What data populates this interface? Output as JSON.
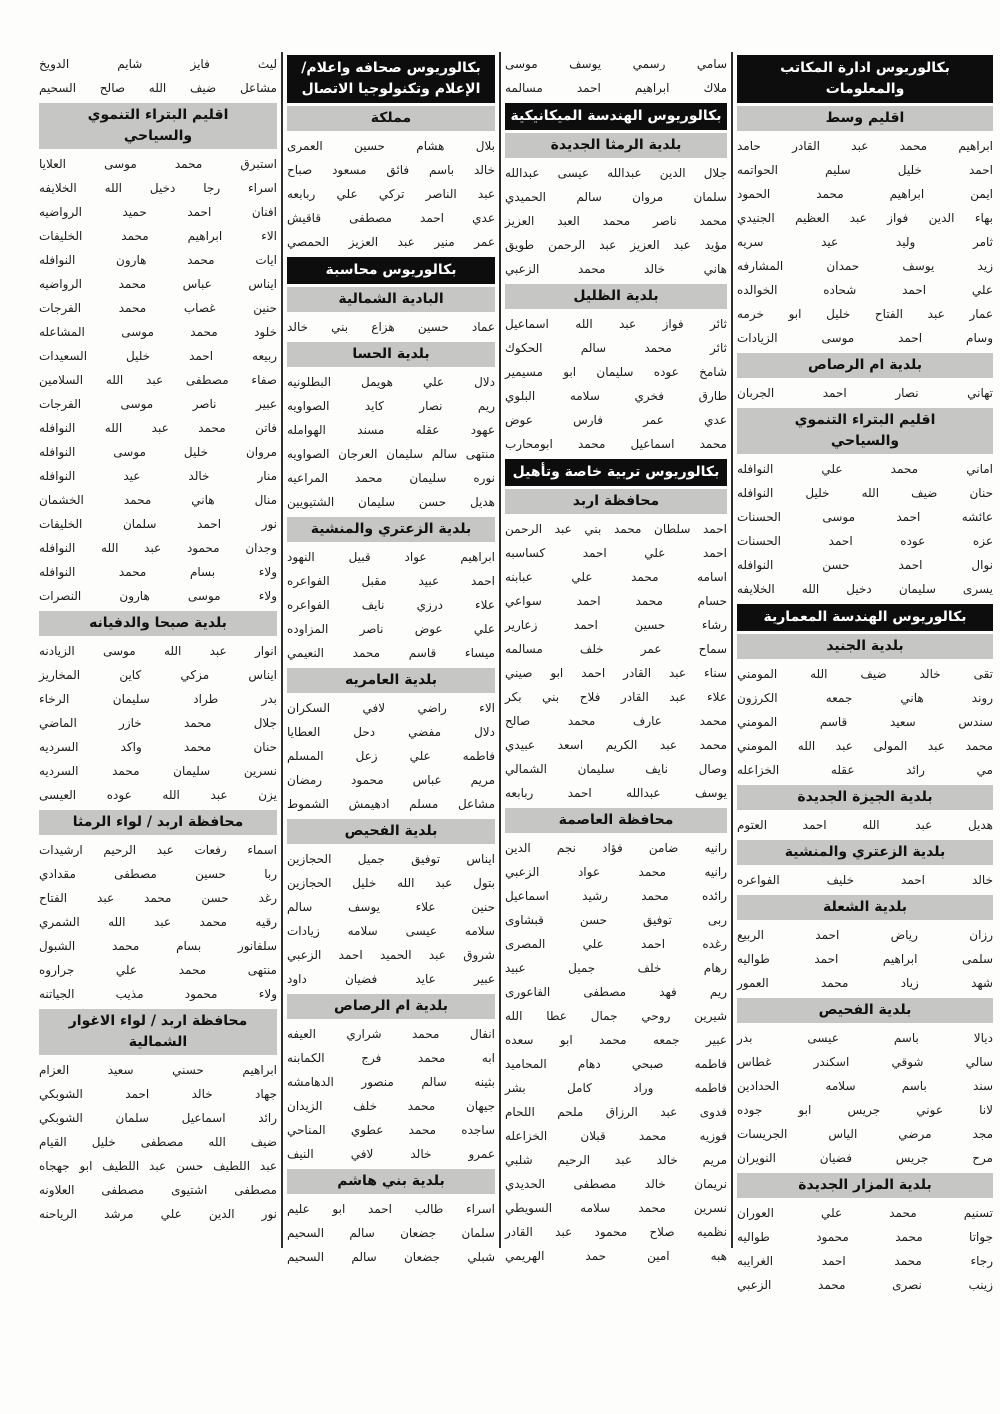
{
  "page": {
    "language": "ar",
    "direction": "rtl",
    "paper_color": "#fdfdfc",
    "text_color": "#1c1c1c",
    "degree_header_bg": "#0d0d0d",
    "degree_header_text": "#ffffff",
    "region_header_bg": "#c6c6c4",
    "divider_color": "#2e2e2e"
  },
  "columns": [
    {
      "blocks": [
        {
          "kind": "degree",
          "lines": [
            "بكالوريوس ادارة المكاتب",
            "والمعلومات"
          ]
        },
        {
          "kind": "region",
          "lines": [
            "اقليم وسط"
          ]
        },
        {
          "kind": "names",
          "items": [
            "ابراهيم محمد عبد القادر حامد",
            "احمد خليل سليم الحواتمه",
            "ايمن ابراهيم محمد الحمود",
            "بهاء الدين فواز عبد العظيم الجنيدي",
            "ثامر وليد عيد سريه",
            "زيد يوسف حمدان المشارفه",
            "علي احمد شحاده الخوالده",
            "عمار عبد الفتاح خليل ابو خرمه",
            "وسام احمد موسى الزيادات"
          ]
        },
        {
          "kind": "region",
          "lines": [
            "بلدية ام الرصاص"
          ]
        },
        {
          "kind": "names",
          "items": [
            "تهاني نصار احمد الجربان"
          ]
        },
        {
          "kind": "region",
          "lines": [
            "اقليم البتراء التنموي",
            "والسياحي"
          ]
        },
        {
          "kind": "names",
          "items": [
            "اماني محمد علي النوافله",
            "حنان ضيف الله خليل النوافله",
            "عائشه احمد موسى الحسنات",
            "عزه عوده احمد الحسنات",
            "نوال احمد حسن النوافله",
            "يسرى سليمان دخيل الله الخلايفه"
          ]
        },
        {
          "kind": "degree",
          "lines": [
            "بكالوريوس الهندسة المعمارية"
          ]
        },
        {
          "kind": "region",
          "lines": [
            "بلدية الجنيد"
          ]
        },
        {
          "kind": "names",
          "items": [
            "تقى خالد ضيف الله المومني",
            "روند هاني جمعه الكرزون",
            "سندس سعيد قاسم المومني",
            "محمد عبد المولى عبد الله المومني",
            "مي رائد عقله الخزاعله"
          ]
        },
        {
          "kind": "region",
          "lines": [
            "بلدية الجيزة الجديدة"
          ]
        },
        {
          "kind": "names",
          "items": [
            "هديل عبد الله احمد العتوم"
          ]
        },
        {
          "kind": "region",
          "lines": [
            "بلدية الزعتري والمنشية"
          ]
        },
        {
          "kind": "names",
          "items": [
            "خالد احمد خليف الفواعره"
          ]
        },
        {
          "kind": "region",
          "lines": [
            "بلدية الشعلة"
          ]
        },
        {
          "kind": "names",
          "items": [
            "رزان رياض احمد الربيع",
            "سلمى ابراهيم احمد طواليه",
            "شهد زياد محمد العمور"
          ]
        },
        {
          "kind": "region",
          "lines": [
            "بلدية الفحيص"
          ]
        },
        {
          "kind": "names",
          "items": [
            "ديالا باسم عيسى بدر",
            "سالي شوقي اسكندر غطاس",
            "سند باسم سلامه الحدادين",
            "لانا عوني جريس ابو جوده",
            "مجد مرضي الياس الجريسات",
            "مرح جريس فضيان النويران"
          ]
        },
        {
          "kind": "region",
          "lines": [
            "بلدية المزار الجديدة"
          ]
        },
        {
          "kind": "names",
          "items": [
            "تسنيم محمد علي العوران",
            "جواتا محمد محمود طواليه",
            "رجاء محمد احمد الغرايبه",
            "زينب نصرى محمد الزعبي"
          ]
        }
      ]
    },
    {
      "blocks": [
        {
          "kind": "names",
          "items": [
            "سامي رسمي يوسف موسى",
            "ملاك ابراهيم احمد مسالمه"
          ]
        },
        {
          "kind": "degree",
          "lines": [
            "بكالوريوس الهندسة الميكانيكية"
          ]
        },
        {
          "kind": "region",
          "lines": [
            "بلدية الرمثا الجديدة"
          ]
        },
        {
          "kind": "names",
          "items": [
            "جلال الدين عبدالله عيسى عبدالله",
            "سلمان مروان سالم الحميدي",
            "محمد ناصر محمد العبد العزيز",
            "مؤيد عبد العزيز عبد الرحمن طويق",
            "هاني خالد محمد الزعبي"
          ]
        },
        {
          "kind": "region",
          "lines": [
            "بلدية الظليل"
          ]
        },
        {
          "kind": "names",
          "items": [
            "ثائر فواز عبد الله اسماعيل",
            "ثائر محمد سالم الحكوك",
            "شامخ عوده سليمان ابو مسيمير",
            "طارق فخري سلامه البلوي",
            "عدي عمر فارس عوض",
            "محمد اسماعيل محمد ابومحارب"
          ]
        },
        {
          "kind": "degree",
          "lines": [
            "بكالوريوس تربية خاصة وتأهيل"
          ]
        },
        {
          "kind": "region",
          "lines": [
            "محافظة اربد"
          ]
        },
        {
          "kind": "names",
          "items": [
            "احمد سلطان محمد بني عبد الرحمن",
            "احمد علي احمد كساسبه",
            "اسامه محمد علي عبابنه",
            "حسام محمد احمد سواعي",
            "رشاء حسين احمد زعارير",
            "سماح عمر خلف مسالمه",
            "سناء عبد القادر احمد ابو صيني",
            "علاء عبد القادر فلاح بني بكر",
            "محمد عارف محمد صالح",
            "محمد عبد الكريم اسعد عبيدي",
            "وصال نايف سليمان الشمالي",
            "يوسف عبدالله احمد ربابعه"
          ]
        },
        {
          "kind": "region",
          "lines": [
            "محافظة العاصمة"
          ]
        },
        {
          "kind": "names",
          "items": [
            "رانيه ضامن فؤاد نجم الدين",
            "رانيه محمد عواد الزعبي",
            "رائده محمد رشيد اسماعيل",
            "ربى توفيق حسن قبشاوى",
            "رغده احمد علي المصرى",
            "رهام خلف جميل عبيد",
            "ريم فهد مصطفى الفاعورى",
            "شيرين روحي جمال عطا الله",
            "عبير جمعه محمد ابو سعده",
            "فاطمه صبحي دهام المحاميد",
            "فاطمه وراد كامل بشر",
            "فدوى عبد الرزاق ملحم اللحام",
            "فوزيه محمد قبلان الخزاعله",
            "مريم خالد عبد الرحيم شلبي",
            "نريمان خالد مصطفى الحديدي",
            "نسرين محمد سلامه السويطي",
            "نظميه صلاح محمود عبد القادر",
            "هبه امين حمد الهريمي"
          ]
        }
      ]
    },
    {
      "blocks": [
        {
          "kind": "degree",
          "lines": [
            "بكالوريوس صحافه واعلام/",
            "الإعلام وتكنولوجيا الاتصال"
          ]
        },
        {
          "kind": "region",
          "lines": [
            "مملكة"
          ]
        },
        {
          "kind": "names",
          "items": [
            "بلال هشام حسين العمرى",
            "خالد باسم فائق مسعود صباح",
            "عبد الناصر تركي علي ربابعه",
            "عدي احمد مصطفى قاقيش",
            "عمر منير عبد العزيز الحمصي"
          ]
        },
        {
          "kind": "degree",
          "lines": [
            "بكالوريوس محاسبة"
          ]
        },
        {
          "kind": "region",
          "lines": [
            "البادية الشمالية"
          ]
        },
        {
          "kind": "names",
          "items": [
            "عماد حسين هزاع بني خالد"
          ]
        },
        {
          "kind": "region",
          "lines": [
            "بلدية الحسا"
          ]
        },
        {
          "kind": "names",
          "items": [
            "دلال علي هويمل البطلونيه",
            "ريم نصار كايد الصواويه",
            "عهود عقله مسند الهوامله",
            "منتهى سالم سليمان العرجان الصواويه",
            "نوره سليمان محمد المراعيه",
            "هديل حسن سليمان الشتيويين"
          ]
        },
        {
          "kind": "region",
          "lines": [
            "بلدية الزعتري والمنشية"
          ]
        },
        {
          "kind": "names",
          "items": [
            "ابراهيم عواد قبيل النهود",
            "احمد عبيد مقبل الفواعره",
            "علاء درزي نايف الفواعره",
            "علي عوض ناصر المزاوده",
            "ميساء قاسم محمد النعيمي"
          ]
        },
        {
          "kind": "region",
          "lines": [
            "بلدية العامريه"
          ]
        },
        {
          "kind": "names",
          "items": [
            "الاء راضي لافي السكران",
            "دلال مفضي دحل العطايا",
            "فاطمه علي زعل المسلم",
            "مريم عباس محمود رمضان",
            "مشاعل مسلم ادهيمش الشموط"
          ]
        },
        {
          "kind": "region",
          "lines": [
            "بلدية الفحيص"
          ]
        },
        {
          "kind": "names",
          "items": [
            "ايناس توفيق جميل الحجازين",
            "بتول عبد الله خليل الحجازين",
            "حنين علاء يوسف سالم",
            "سلامه عيسى سلامه زيادات",
            "شروق عبد الحميد احمد الزعبي",
            "عبير عايد فضيان داود"
          ]
        },
        {
          "kind": "region",
          "lines": [
            "بلدية ام الرصاص"
          ]
        },
        {
          "kind": "names",
          "items": [
            "انفال محمد شراري العيفه",
            "ابه محمد فرج الكمابنه",
            "بثينه سالم منصور الدهامشه",
            "جيهان محمد خلف الزيدان",
            "ساجده محمد عطوي المناحي",
            "عمرو خالد لافي النيف"
          ]
        },
        {
          "kind": "region",
          "lines": [
            "بلدية بني هاشم"
          ]
        },
        {
          "kind": "names",
          "items": [
            "اسراء طالب احمد ابو عليم",
            "سلمان جضعان سالم السحيم",
            "شبلي جضعان سالم السحيم"
          ]
        }
      ]
    },
    {
      "blocks": [
        {
          "kind": "names",
          "items": [
            "ليث فايز شايم الدويخ",
            "مشاعل ضيف الله صالح السحيم"
          ]
        },
        {
          "kind": "region",
          "lines": [
            "اقليم البتراء التنموي",
            "والسياحي"
          ]
        },
        {
          "kind": "names",
          "items": [
            "استبرق محمد موسى العلايا",
            "اسراء رجا دخيل الله الخلايفه",
            "افنان احمد حميد الرواضيه",
            "الاء ابراهيم محمد الخليفات",
            "ايات محمد هارون النوافله",
            "ايناس عباس محمد الرواضيه",
            "حنين غصاب محمد الفرجات",
            "خلود محمد موسى المشاعله",
            "ربيعه احمد خليل السعيدات",
            "صفاء مصطفى عبد الله السلامين",
            "عبير ناصر موسى الفرجات",
            "فاتن محمد عبد الله النوافله",
            "مروان خليل موسى النوافله",
            "منار خالد عيد النوافله",
            "منال هاني محمد الخشمان",
            "نور احمد سلمان الخليفات",
            "وجدان محمود عبد الله النوافله",
            "ولاء بسام محمد النوافله",
            "ولاء موسى هارون النصرات"
          ]
        },
        {
          "kind": "region",
          "lines": [
            "بلدية صبحا والدفيانه"
          ]
        },
        {
          "kind": "names",
          "items": [
            "انوار عبد الله موسى الزيادنه",
            "ايناس مزكي كاين المخاريز",
            "بدر طراد سليمان الرخاء",
            "جلال محمد خازر الماضي",
            "حنان محمد واكد السرديه",
            "نسرين سليمان محمد السرديه",
            "يزن عبد الله عوده العيسى"
          ]
        },
        {
          "kind": "region",
          "lines": [
            "محافظة اربد / لواء الرمثا"
          ]
        },
        {
          "kind": "names",
          "items": [
            "اسماء رفعات عبد الرحيم ارشيدات",
            "ربا حسين مصطفى مقدادي",
            "رغد حسن محمد عبد الفتاح",
            "رقيه محمد عبد الله الشمري",
            "سلفانور بسام محمد الشبول",
            "منتهى محمد علي جراروه",
            "ولاء محمود مذيب الجياتنه"
          ]
        },
        {
          "kind": "region",
          "lines": [
            "محافظة اربد / لواء الاغوار",
            "الشمالية"
          ]
        },
        {
          "kind": "names",
          "items": [
            "ابراهيم حسني سعيد العزام",
            "جهاد خالد احمد الشوبكي",
            "رائد اسماعيل سلمان الشوبكي",
            "ضيف الله مصطفى خليل القيام",
            "عبد اللطيف حسن عبد اللطيف ابو جهجاه",
            "مصطفى اشتيوى مصطفى العلاونه",
            "نور الدين علي مرشد الرياحنه"
          ]
        }
      ]
    }
  ]
}
